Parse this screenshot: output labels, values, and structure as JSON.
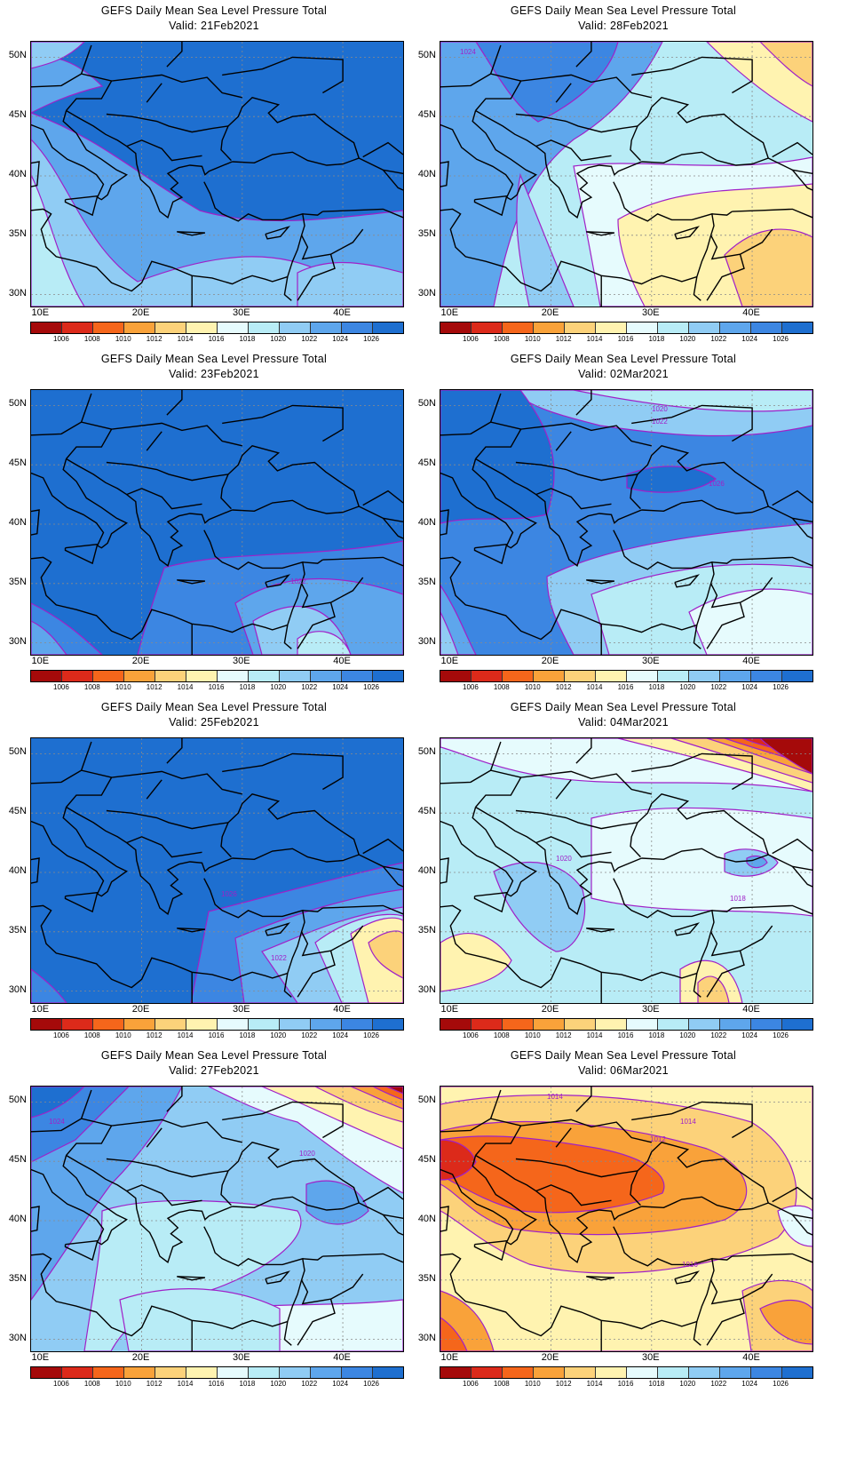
{
  "palette": {
    "1006": "#a50a0a",
    "1008": "#dc2a1a",
    "1010": "#f5661b",
    "1012": "#f9a23a",
    "1014": "#fcd27a",
    "1016": "#fff3b0",
    "1018": "#e6fbfd",
    "1020": "#b8ecf6",
    "1022": "#90ccf4",
    "1024": "#5ea6ec",
    "1026": "#3c86e2",
    "1028": "#1e6fd0"
  },
  "contour_color": "#a020c8",
  "colorbar_labels": [
    "1006",
    "1008",
    "1010",
    "1012",
    "1014",
    "1016",
    "1018",
    "1020",
    "1022",
    "1024",
    "1026"
  ],
  "axes": {
    "x_ticks": [
      "10E",
      "20E",
      "30E",
      "40E"
    ],
    "y_ticks": [
      "50N",
      "45N",
      "40N",
      "35N",
      "30N"
    ]
  },
  "panels": [
    {
      "title": "GEFS Daily Mean Sea Level Pressure Total",
      "valid": "Valid: 21Feb2021",
      "contour_labels": []
    },
    {
      "title": "GEFS Daily Mean Sea Level Pressure Total",
      "valid": "Valid: 28Feb2021",
      "contour_labels": [
        "1024"
      ]
    },
    {
      "title": "GEFS Daily Mean Sea Level Pressure Total",
      "valid": "Valid: 23Feb2021",
      "contour_labels": [
        "1022"
      ]
    },
    {
      "title": "GEFS Daily Mean Sea Level Pressure Total",
      "valid": "Valid: 02Mar2021",
      "contour_labels": [
        "1020",
        "1022",
        "1026"
      ]
    },
    {
      "title": "GEFS Daily Mean Sea Level Pressure Total",
      "valid": "Valid: 25Feb2021",
      "contour_labels": [
        "1026",
        "1022"
      ]
    },
    {
      "title": "GEFS Daily Mean Sea Level Pressure Total",
      "valid": "Valid: 04Mar2021",
      "contour_labels": [
        "1020",
        "1018"
      ]
    },
    {
      "title": "GEFS Daily Mean Sea Level Pressure Total",
      "valid": "Valid: 27Feb2021",
      "contour_labels": [
        "1024",
        "1020"
      ]
    },
    {
      "title": "GEFS Daily Mean Sea Level Pressure Total",
      "valid": "Valid: 06Mar2021",
      "contour_labels": [
        "1014",
        "1014",
        "1012",
        "1016"
      ]
    }
  ]
}
